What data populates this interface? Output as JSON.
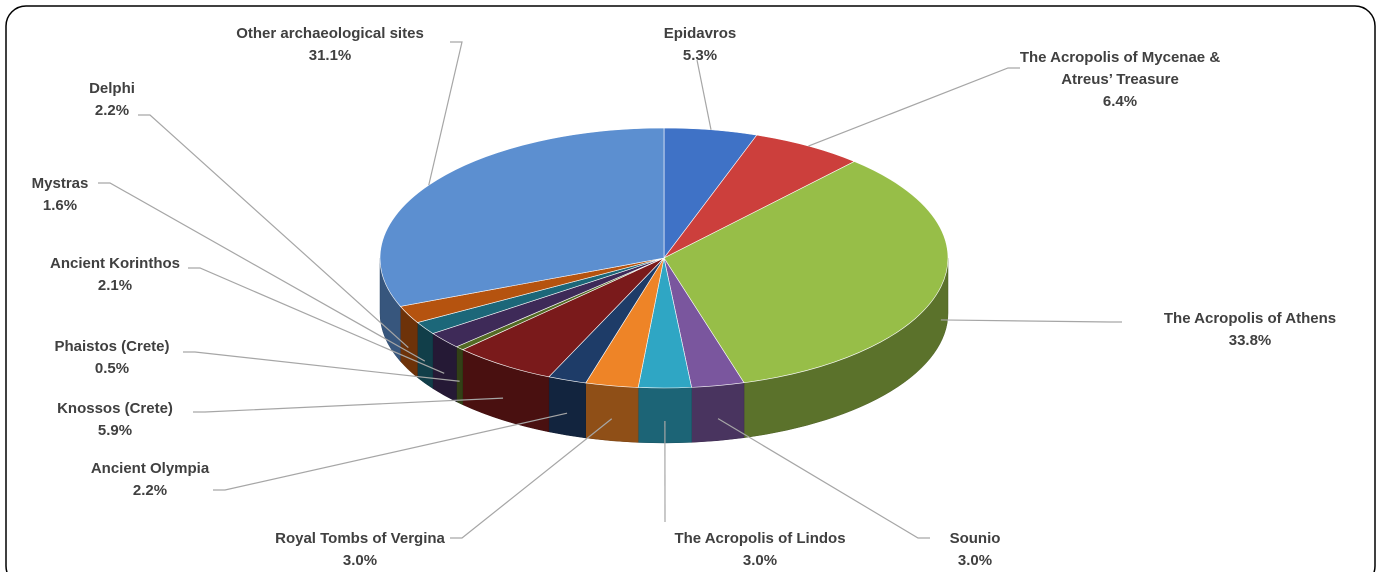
{
  "chart_data": {
    "type": "pie",
    "categories": [
      "Epidavros",
      "The Acropolis of Mycenae & Atreus’ Treasure",
      "The Acropolis of Athens",
      "Sounio",
      "The Acropolis of Lindos",
      "Royal Tombs of Vergina",
      "Ancient Olympia",
      "Knossos (Crete)",
      "Phaistos (Crete)",
      "Ancient Korinthos",
      "Mystras",
      "Delphi",
      "Other archaeological sites"
    ],
    "values": [
      5.3,
      6.4,
      33.8,
      3.0,
      3.0,
      3.0,
      2.2,
      5.9,
      0.5,
      2.1,
      1.6,
      2.2,
      31.1
    ],
    "value_labels": [
      "5.3%",
      "6.4%",
      "33.8%",
      "3.0%",
      "3.0%",
      "3.0%",
      "2.2%",
      "5.9%",
      "0.5%",
      "2.1%",
      "1.6%",
      "2.2%",
      "31.1%"
    ],
    "colors": [
      "#3f72c6",
      "#cc3f3c",
      "#97be48",
      "#7a569e",
      "#2fa6c4",
      "#ee8427",
      "#1e3c68",
      "#7a1a1b",
      "#536a24",
      "#3e2a58",
      "#1c6779",
      "#b5530f",
      "#5c8fd0"
    ]
  }
}
